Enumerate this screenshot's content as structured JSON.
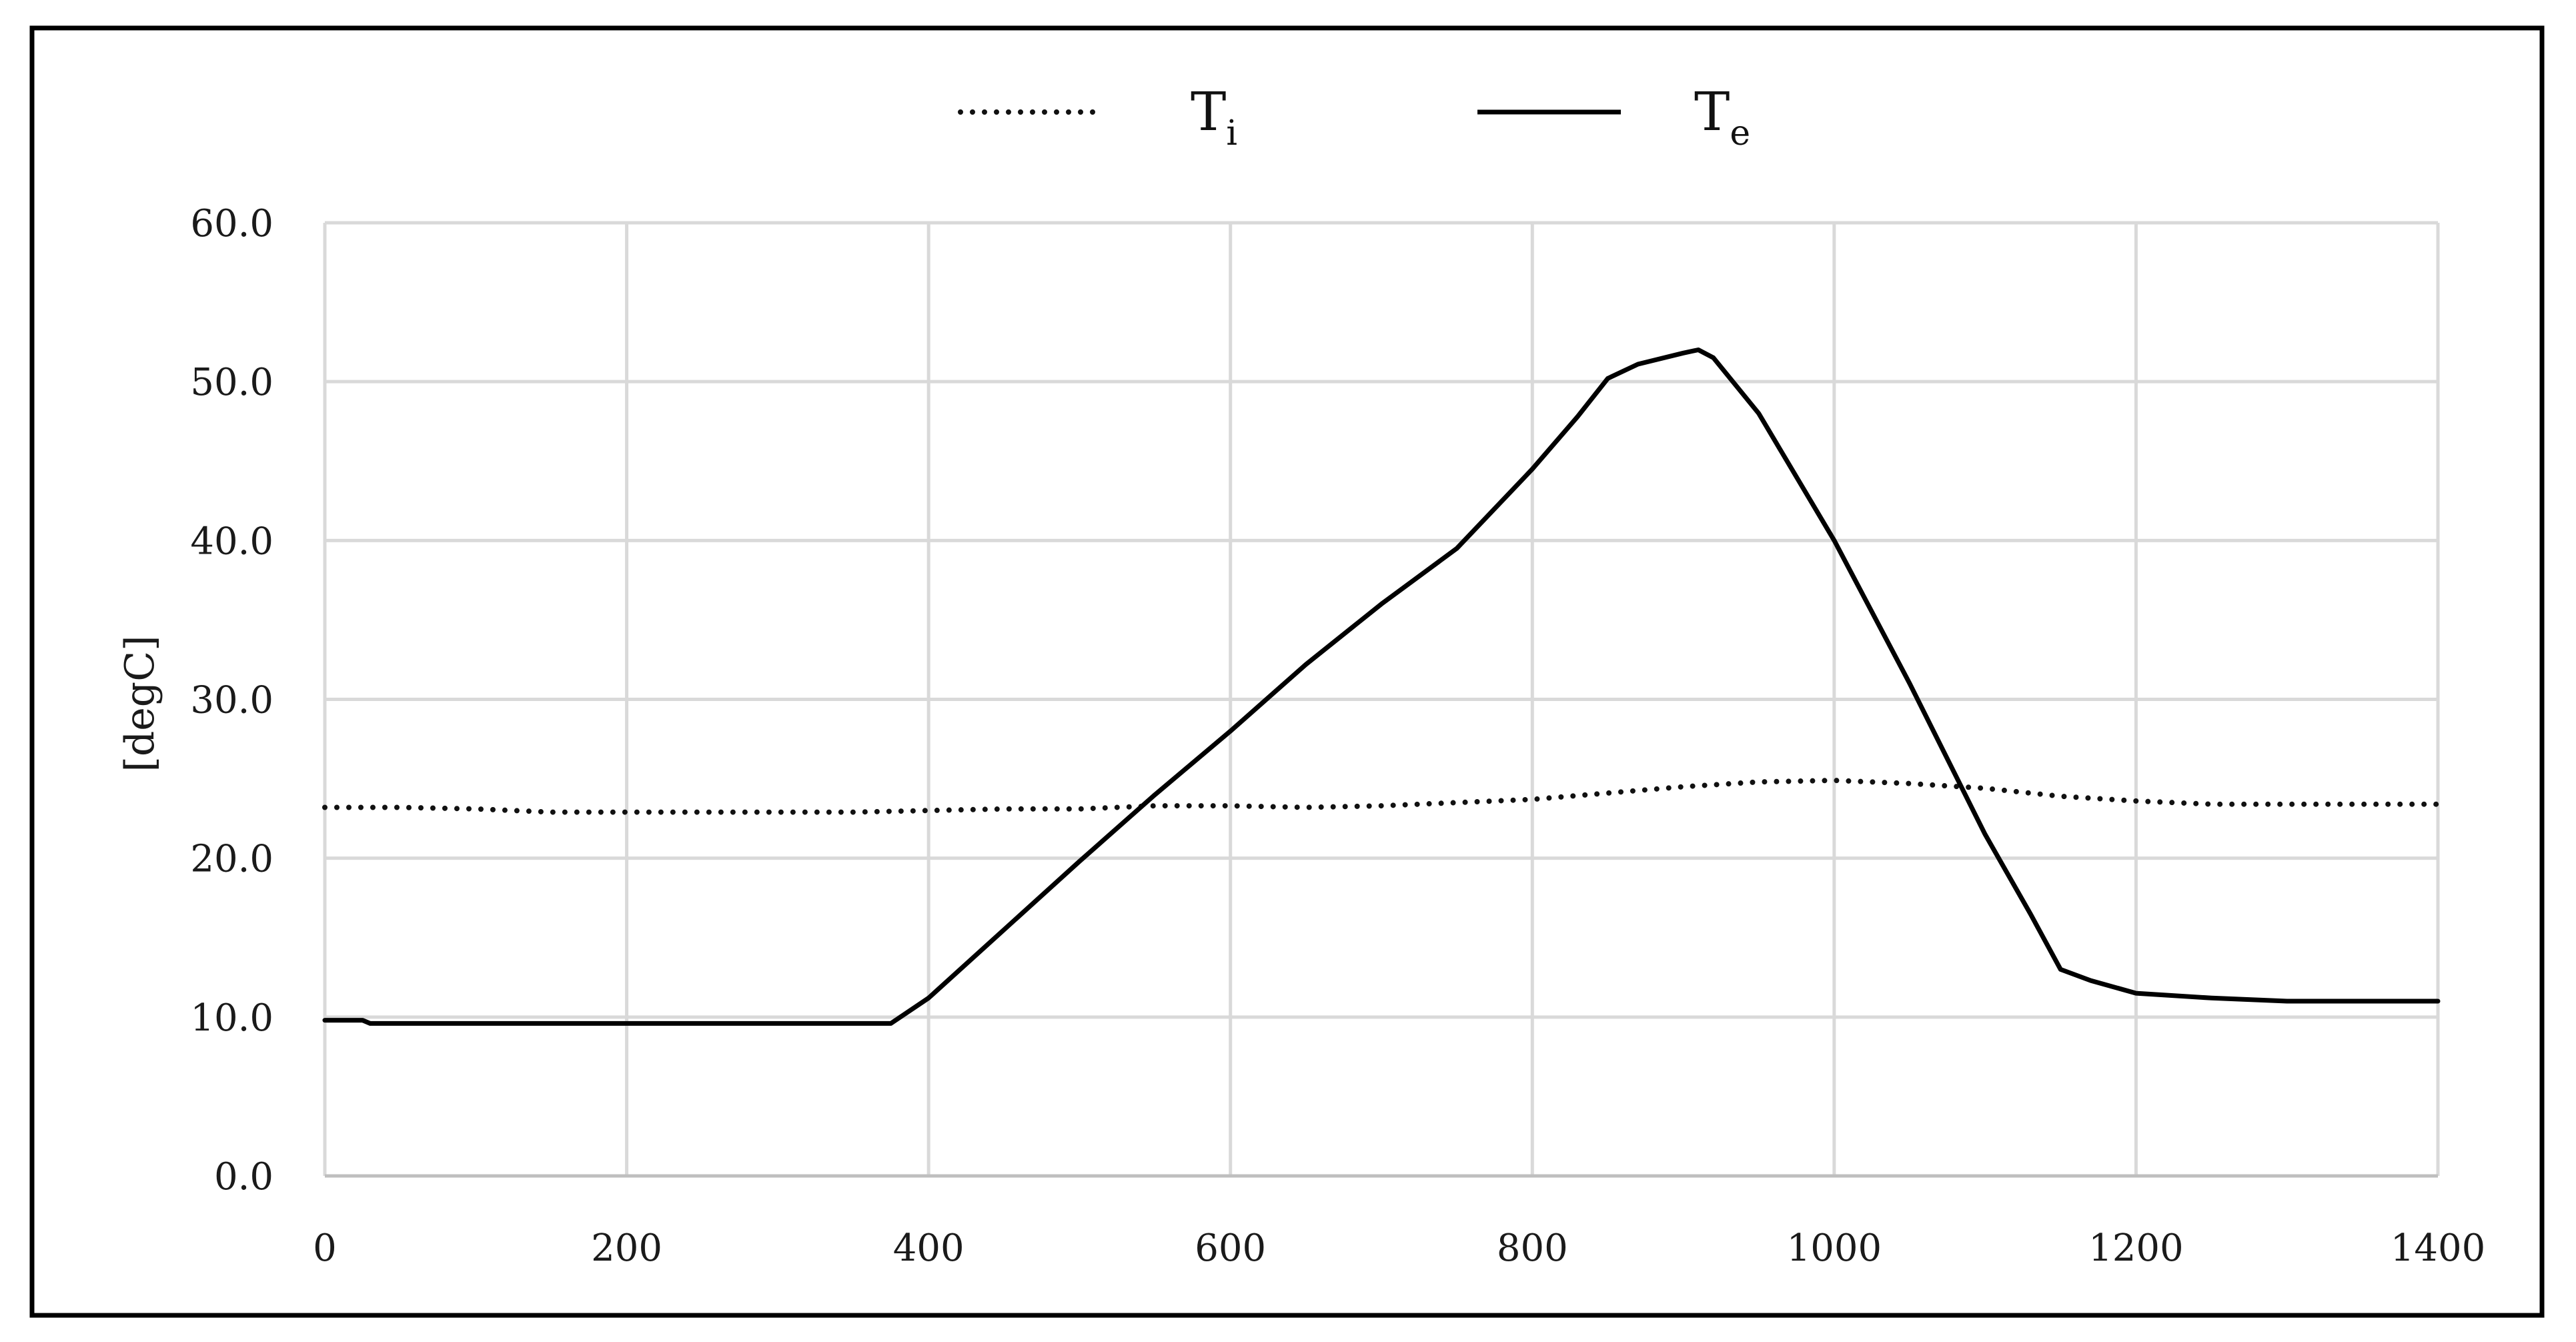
{
  "chart_data": {
    "type": "line",
    "title": "",
    "xlabel": "",
    "ylabel": "[degC]",
    "xlim": [
      0,
      1400
    ],
    "ylim": [
      0,
      60
    ],
    "x_ticks": [
      0,
      200,
      400,
      600,
      800,
      1000,
      1200,
      1400
    ],
    "y_ticks": [
      "0.0",
      "10.0",
      "20.0",
      "30.0",
      "40.0",
      "50.0",
      "60.0"
    ],
    "grid": true,
    "legend_position": "top-center",
    "series": [
      {
        "name": "T",
        "subscript": "i",
        "style": "dotted",
        "color": "#111111",
        "x": [
          0,
          50,
          100,
          150,
          200,
          250,
          300,
          350,
          400,
          450,
          500,
          550,
          600,
          650,
          700,
          750,
          800,
          850,
          900,
          950,
          1000,
          1050,
          1100,
          1150,
          1200,
          1250,
          1300,
          1350,
          1400
        ],
        "y": [
          23.2,
          23.2,
          23.1,
          22.9,
          22.9,
          22.9,
          22.9,
          22.9,
          23.0,
          23.1,
          23.1,
          23.3,
          23.3,
          23.2,
          23.3,
          23.5,
          23.7,
          24.1,
          24.5,
          24.8,
          24.9,
          24.7,
          24.4,
          23.9,
          23.6,
          23.4,
          23.4,
          23.4,
          23.4
        ]
      },
      {
        "name": "T",
        "subscript": "e",
        "style": "solid",
        "color": "#000000",
        "x": [
          0,
          25,
          30,
          100,
          200,
          300,
          375,
          400,
          450,
          500,
          550,
          600,
          650,
          700,
          750,
          800,
          830,
          850,
          870,
          900,
          910,
          920,
          950,
          1000,
          1050,
          1100,
          1130,
          1150,
          1170,
          1200,
          1250,
          1300,
          1350,
          1400
        ],
        "y": [
          9.8,
          9.8,
          9.6,
          9.6,
          9.6,
          9.6,
          9.6,
          11.2,
          15.5,
          19.8,
          24.0,
          28.0,
          32.2,
          36.0,
          39.5,
          44.5,
          47.8,
          50.2,
          51.1,
          51.8,
          52.0,
          51.5,
          48.0,
          40.0,
          31.0,
          21.5,
          16.5,
          13.0,
          12.3,
          11.5,
          11.2,
          11.0,
          11.0,
          11.0
        ]
      }
    ]
  }
}
